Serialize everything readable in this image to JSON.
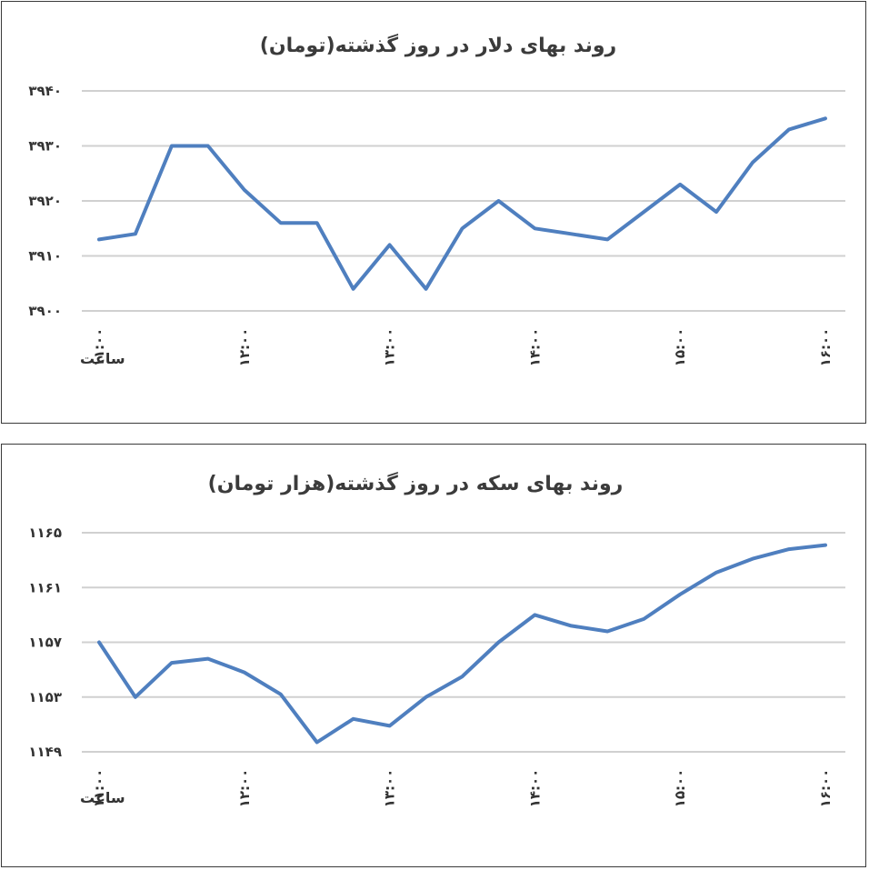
{
  "chart_data": [
    {
      "type": "line",
      "title": "روند بهای دلار در روز گذشته(تومان)",
      "xlabel": "ساعت",
      "ylabel": "",
      "ylim": [
        3900,
        3940
      ],
      "yticks": [
        3900,
        3910,
        3920,
        3930,
        3940
      ],
      "ytick_labels": [
        "۳۹۰۰",
        "۳۹۱۰",
        "۳۹۲۰",
        "۳۹۳۰",
        "۳۹۴۰"
      ],
      "x_tick_labels": [
        "۱۱:۰۰",
        "۱۲:۰۰",
        "۱۳:۰۰",
        "۱۴:۰۰",
        "۱۵:۰۰",
        "۱۶:۰۰"
      ],
      "grid": true,
      "legend": "none",
      "color": "#4f7fbf",
      "series": [
        {
          "values": [
            3913,
            3914,
            3930,
            3930,
            3922,
            3916,
            3916,
            3904,
            3912,
            3904,
            3915,
            3920,
            3915,
            3914,
            3913,
            3918,
            3923,
            3918,
            3927,
            3933,
            3935
          ]
        }
      ]
    },
    {
      "type": "line",
      "title": "روند بهای سکه در روز گذشته(هزار تومان)",
      "xlabel": "ساعت",
      "ylabel": "",
      "ylim": [
        1149,
        1165
      ],
      "yticks": [
        1149,
        1153,
        1157,
        1161,
        1165
      ],
      "ytick_labels": [
        "۱۱۴۹",
        "۱۱۵۳",
        "۱۱۵۷",
        "۱۱۶۱",
        "۱۱۶۵"
      ],
      "x_tick_labels": [
        "۱۱:۰۰",
        "۱۲:۰۰",
        "۱۳:۰۰",
        "۱۴:۰۰",
        "۱۵:۰۰",
        "۱۶:۰۰"
      ],
      "grid": true,
      "legend": "none",
      "color": "#4f7fbf",
      "series": [
        {
          "values": [
            1157,
            1153,
            1155.5,
            1155.8,
            1154.8,
            1153.2,
            1149.7,
            1151.4,
            1150.9,
            1153,
            1154.5,
            1157,
            1159,
            1158.2,
            1157.8,
            1158.7,
            1160.5,
            1162.1,
            1163.1,
            1163.8,
            1164.1
          ]
        }
      ]
    }
  ]
}
